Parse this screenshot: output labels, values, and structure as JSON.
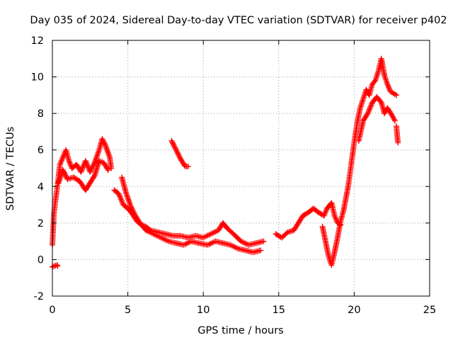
{
  "chart_data": {
    "type": "scatter",
    "title": "Day 035 of 2024, Sidereal Day-to-day VTEC variation (SDTVAR) for receiver p402",
    "xlabel": "GPS time / hours",
    "ylabel": "SDTVAR / TECUs",
    "xlim": [
      0,
      25
    ],
    "ylim": [
      -2,
      12
    ],
    "xticks": [
      "0",
      "5",
      "10",
      "15",
      "20",
      "25"
    ],
    "yticks": [
      "-2",
      "0",
      "2",
      "4",
      "6",
      "8",
      "10",
      "12"
    ],
    "grid": true,
    "marker": "+",
    "color": "#ff0000",
    "series": [
      {
        "name": "SDTVAR",
        "segments": [
          [
            [
              0.0,
              -0.4
            ],
            [
              0.3,
              -0.3
            ],
            [
              0.35,
              -0.35
            ]
          ],
          [
            [
              0.0,
              0.8
            ],
            [
              0.1,
              2.5
            ],
            [
              0.2,
              3.2
            ],
            [
              0.3,
              3.8
            ],
            [
              0.4,
              4.5
            ],
            [
              0.5,
              5.2
            ],
            [
              0.7,
              5.6
            ],
            [
              0.9,
              6.0
            ],
            [
              1.1,
              5.4
            ],
            [
              1.3,
              5.0
            ],
            [
              1.6,
              5.2
            ],
            [
              1.9,
              4.8
            ],
            [
              2.2,
              5.4
            ],
            [
              2.5,
              4.8
            ],
            [
              2.8,
              5.3
            ],
            [
              3.1,
              6.0
            ],
            [
              3.3,
              6.6
            ],
            [
              3.5,
              6.3
            ],
            [
              3.8,
              5.6
            ],
            [
              3.9,
              5.0
            ]
          ],
          [
            [
              0.4,
              4.2
            ],
            [
              0.7,
              4.9
            ],
            [
              1.0,
              4.4
            ],
            [
              1.4,
              4.5
            ],
            [
              1.8,
              4.3
            ],
            [
              2.2,
              3.8
            ],
            [
              2.5,
              4.2
            ],
            [
              2.8,
              4.6
            ],
            [
              3.1,
              5.4
            ],
            [
              3.4,
              5.3
            ],
            [
              3.7,
              4.9
            ]
          ],
          [
            [
              4.1,
              3.8
            ],
            [
              4.4,
              3.6
            ],
            [
              4.7,
              3.0
            ],
            [
              5.0,
              2.8
            ],
            [
              5.3,
              2.5
            ],
            [
              5.6,
              2.1
            ],
            [
              5.9,
              1.9
            ],
            [
              6.2,
              1.8
            ],
            [
              6.5,
              1.6
            ],
            [
              7.0,
              1.5
            ],
            [
              7.5,
              1.4
            ],
            [
              8.0,
              1.3
            ],
            [
              8.5,
              1.3
            ],
            [
              9.0,
              1.2
            ],
            [
              9.5,
              1.3
            ],
            [
              10.0,
              1.2
            ],
            [
              10.5,
              1.4
            ],
            [
              11.0,
              1.6
            ],
            [
              11.3,
              2.0
            ],
            [
              11.6,
              1.7
            ],
            [
              12.0,
              1.4
            ],
            [
              12.5,
              1.0
            ],
            [
              13.0,
              0.8
            ],
            [
              13.5,
              0.9
            ],
            [
              14.0,
              1.0
            ]
          ],
          [
            [
              4.6,
              4.5
            ],
            [
              4.9,
              3.6
            ],
            [
              5.2,
              2.9
            ],
            [
              5.5,
              2.4
            ],
            [
              5.8,
              2.0
            ],
            [
              6.2,
              1.6
            ],
            [
              6.7,
              1.4
            ],
            [
              7.2,
              1.2
            ],
            [
              7.7,
              1.0
            ],
            [
              8.2,
              0.9
            ],
            [
              8.7,
              0.8
            ],
            [
              9.2,
              1.0
            ],
            [
              9.7,
              0.9
            ],
            [
              10.3,
              0.8
            ],
            [
              10.8,
              1.0
            ],
            [
              11.3,
              0.9
            ],
            [
              11.8,
              0.8
            ],
            [
              12.3,
              0.6
            ],
            [
              12.8,
              0.5
            ],
            [
              13.3,
              0.4
            ],
            [
              13.8,
              0.5
            ]
          ],
          [
            [
              7.9,
              6.5
            ],
            [
              8.2,
              6.0
            ],
            [
              8.5,
              5.5
            ],
            [
              8.8,
              5.1
            ],
            [
              9.0,
              5.1
            ]
          ],
          [
            [
              14.8,
              1.4
            ],
            [
              15.2,
              1.2
            ],
            [
              15.6,
              1.5
            ],
            [
              16.0,
              1.6
            ],
            [
              16.3,
              2.0
            ],
            [
              16.6,
              2.4
            ],
            [
              17.0,
              2.6
            ],
            [
              17.3,
              2.8
            ],
            [
              17.6,
              2.6
            ],
            [
              18.0,
              2.4
            ],
            [
              18.2,
              2.8
            ],
            [
              18.5,
              3.1
            ],
            [
              18.7,
              2.4
            ],
            [
              18.9,
              2.0
            ],
            [
              19.1,
              1.9
            ]
          ],
          [
            [
              17.9,
              1.8
            ],
            [
              18.1,
              1.0
            ],
            [
              18.3,
              0.2
            ],
            [
              18.5,
              -0.3
            ],
            [
              18.7,
              0.4
            ],
            [
              18.9,
              1.2
            ],
            [
              19.1,
              2.1
            ],
            [
              19.3,
              2.7
            ],
            [
              19.6,
              4.0
            ],
            [
              19.8,
              5.2
            ],
            [
              20.0,
              6.4
            ],
            [
              20.2,
              7.5
            ],
            [
              20.4,
              8.3
            ],
            [
              20.6,
              8.8
            ],
            [
              20.8,
              9.3
            ],
            [
              21.0,
              9.0
            ],
            [
              21.2,
              9.6
            ],
            [
              21.4,
              9.8
            ],
            [
              21.6,
              10.3
            ],
            [
              21.8,
              11.0
            ],
            [
              22.0,
              10.1
            ],
            [
              22.2,
              9.6
            ],
            [
              22.4,
              9.2
            ],
            [
              22.6,
              9.1
            ],
            [
              22.8,
              9.0
            ]
          ],
          [
            [
              20.3,
              6.5
            ],
            [
              20.6,
              7.6
            ],
            [
              20.9,
              8.0
            ],
            [
              21.2,
              8.6
            ],
            [
              21.5,
              8.9
            ],
            [
              21.8,
              8.6
            ],
            [
              22.0,
              8.0
            ],
            [
              22.2,
              8.3
            ],
            [
              22.5,
              7.9
            ],
            [
              22.7,
              7.6
            ]
          ],
          [
            [
              22.8,
              7.3
            ],
            [
              22.85,
              6.8
            ],
            [
              22.9,
              6.4
            ]
          ]
        ]
      }
    ]
  }
}
